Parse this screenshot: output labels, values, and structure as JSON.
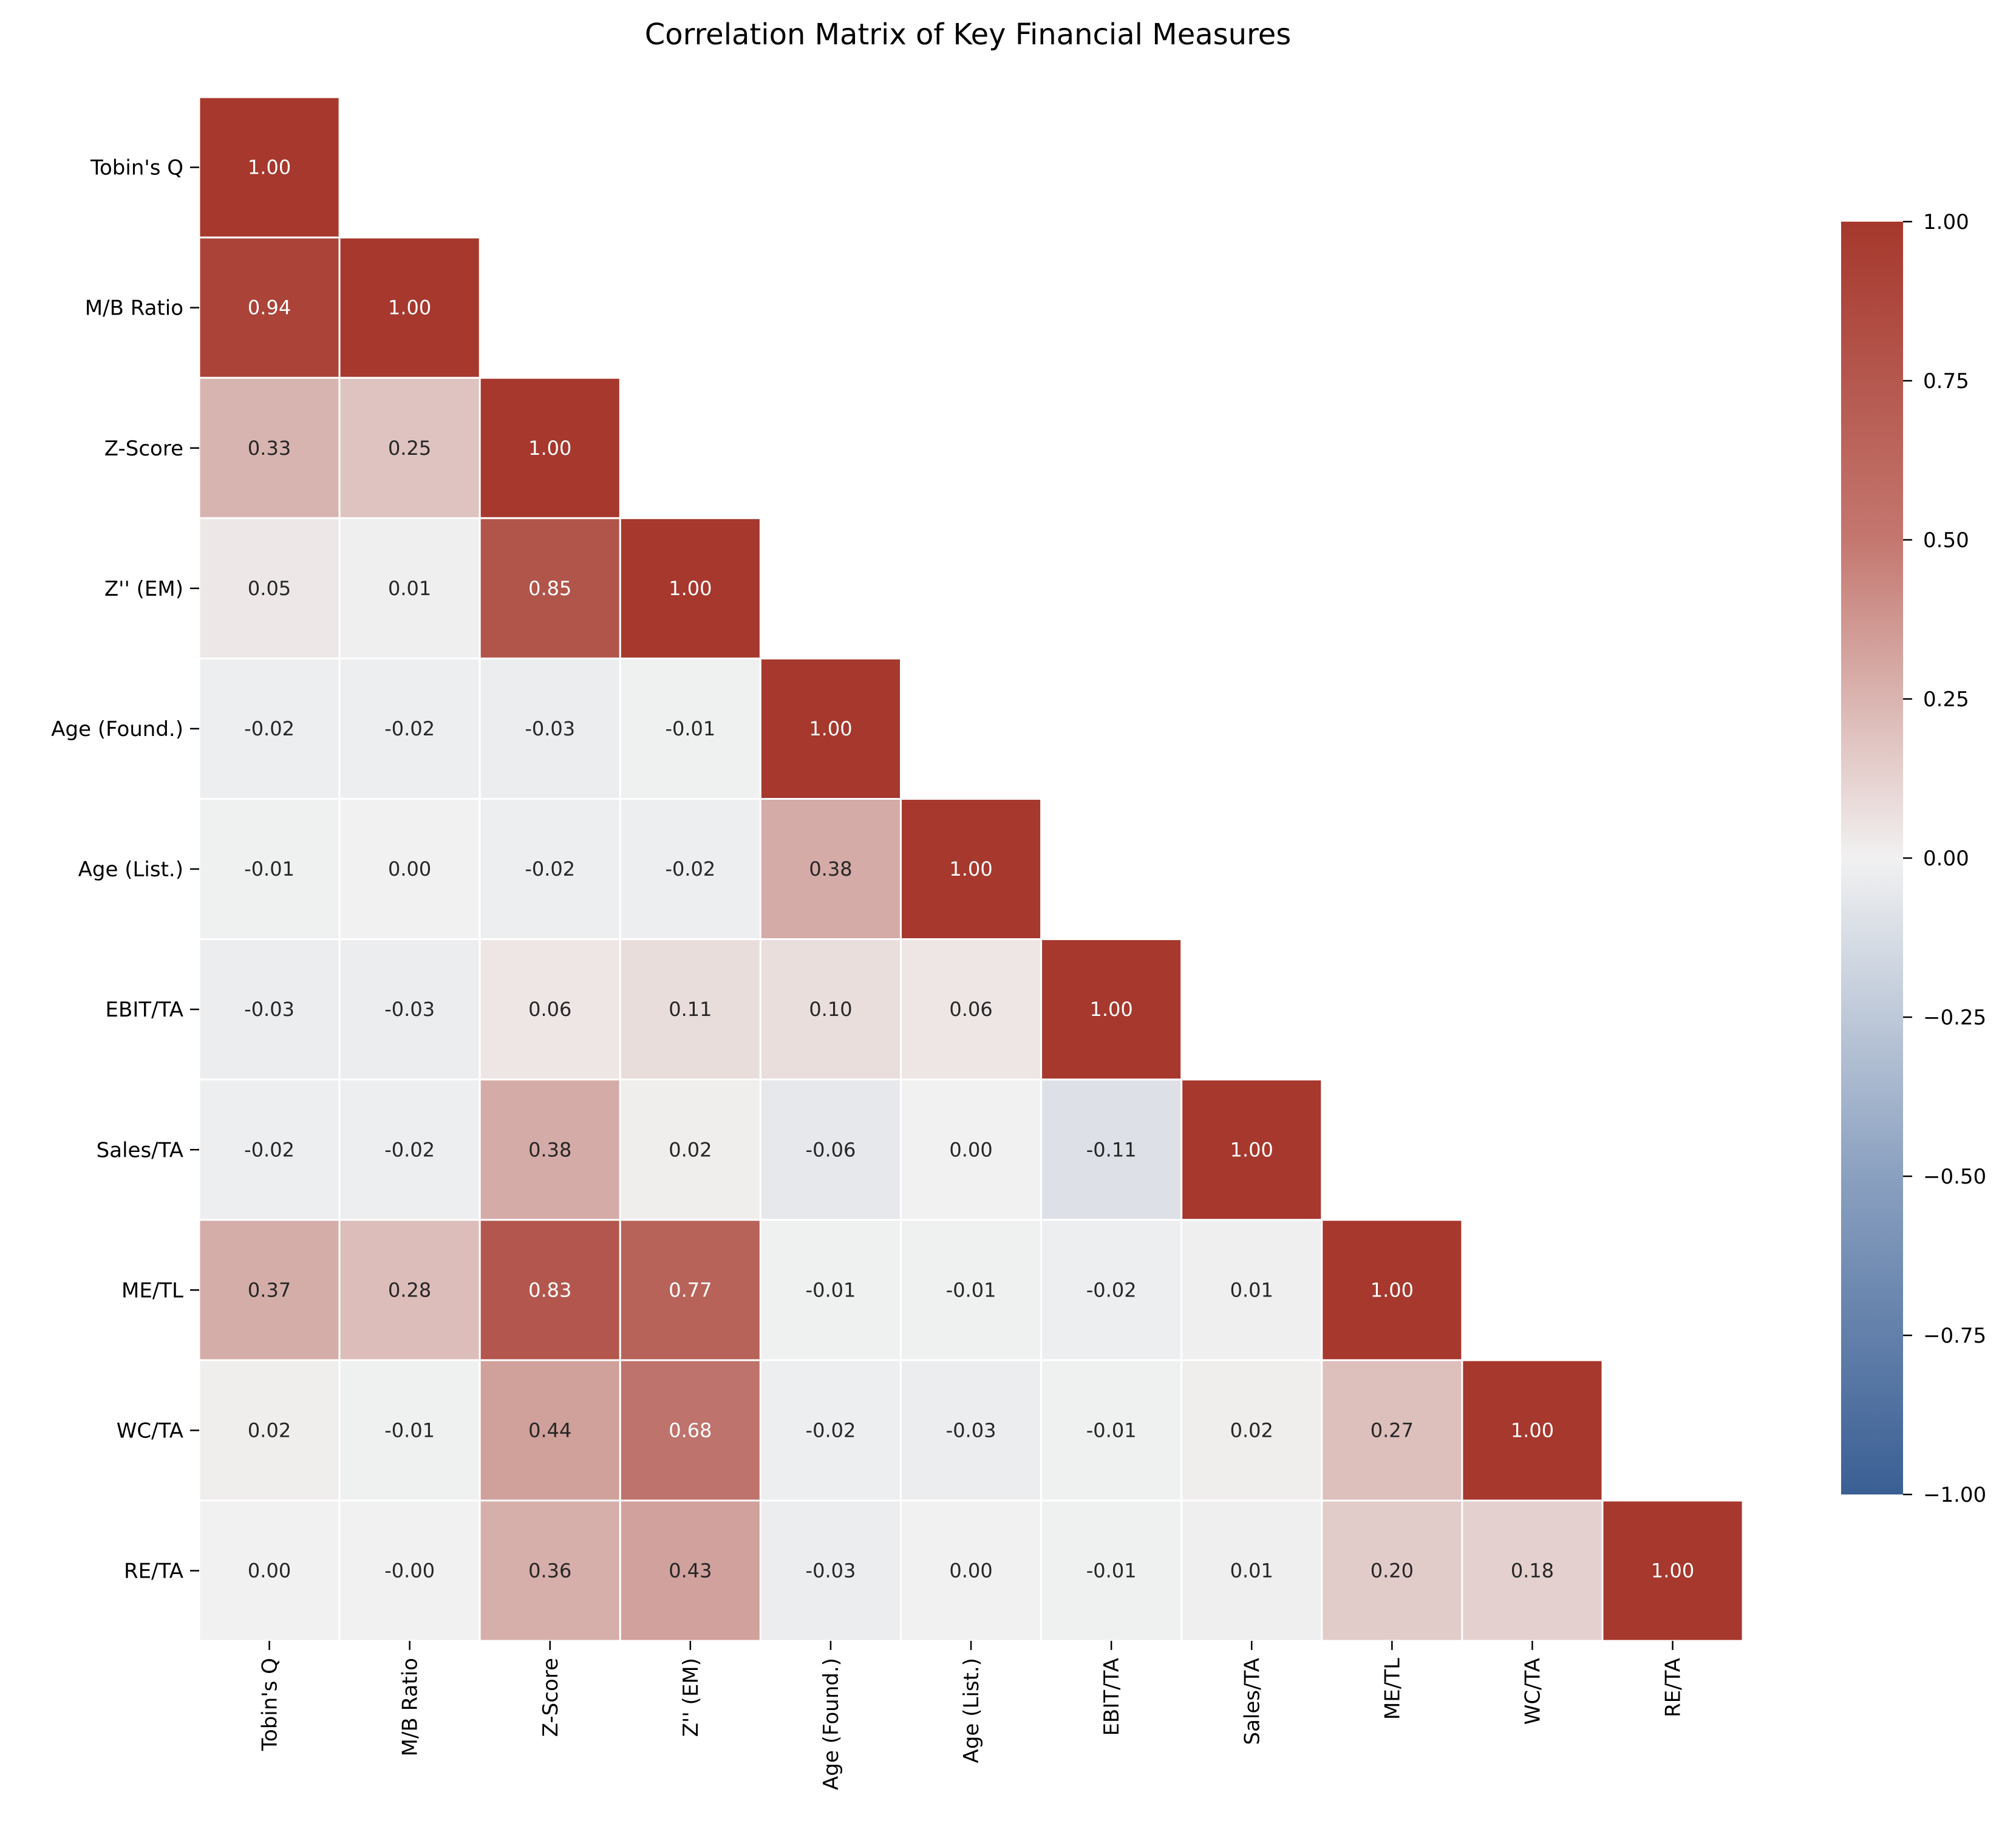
{
  "chart_data": {
    "type": "heatmap",
    "title": "Correlation Matrix of Key Financial Measures",
    "xlabel": "",
    "ylabel": "",
    "variables": [
      "Tobin's Q",
      "M/B Ratio",
      "Z-Score",
      "Z'' (EM)",
      "Age (Found.)",
      "Age (List.)",
      "EBIT/TA",
      "Sales/TA",
      "ME/TL",
      "WC/TA",
      "RE/TA"
    ],
    "mask": "upper-triangle (lower triangle incl. diagonal shown)",
    "value_format": "0.00",
    "values": [
      [
        1.0
      ],
      [
        0.94,
        1.0
      ],
      [
        0.33,
        0.25,
        1.0
      ],
      [
        0.05,
        0.01,
        0.85,
        1.0
      ],
      [
        -0.02,
        -0.02,
        -0.03,
        -0.01,
        1.0
      ],
      [
        -0.01,
        0.0,
        -0.02,
        -0.02,
        0.38,
        1.0
      ],
      [
        -0.03,
        -0.03,
        0.06,
        0.11,
        0.1,
        0.06,
        1.0
      ],
      [
        -0.02,
        -0.02,
        0.38,
        0.02,
        -0.06,
        0.0,
        -0.11,
        1.0
      ],
      [
        0.37,
        0.28,
        0.83,
        0.77,
        -0.01,
        -0.01,
        -0.02,
        0.01,
        1.0
      ],
      [
        0.02,
        -0.01,
        0.44,
        0.68,
        -0.02,
        -0.03,
        -0.01,
        0.02,
        0.27,
        1.0
      ],
      [
        0.0,
        -0.0,
        0.36,
        0.43,
        -0.03,
        0.0,
        -0.01,
        0.01,
        0.2,
        0.18,
        1.0
      ]
    ],
    "colorbar": {
      "range": [
        -1.0,
        1.0
      ],
      "ticks": [
        1.0,
        0.75,
        0.5,
        0.25,
        0.0,
        -0.25,
        -0.5,
        -0.75,
        -1.0
      ],
      "tick_labels": [
        "1.00",
        "0.75",
        "0.50",
        "0.25",
        "0.00",
        "−0.25",
        "−0.50",
        "−0.75",
        "−1.00"
      ],
      "colormap": "diverging blue-white-red",
      "color_low": "#3a5f94",
      "color_mid": "#f1f1f1",
      "color_high": "#a6382d",
      "placement": "right"
    },
    "grid": false,
    "cell_border_color": "#ffffff"
  }
}
